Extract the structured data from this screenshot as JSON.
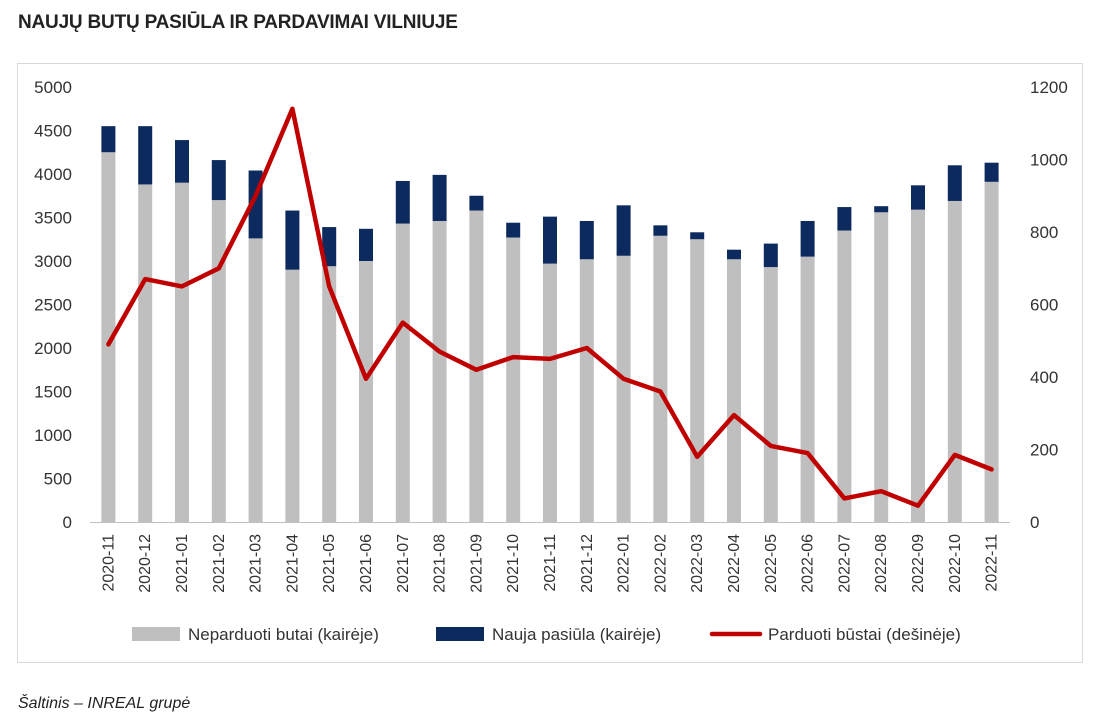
{
  "title": "NAUJŲ BUTŲ PASIŪLA IR PARDAVIMAI VILNIUJE",
  "source": "Šaltinis – INREAL grupė",
  "colors": {
    "unsold": "#bfbfbf",
    "new": "#0d2a5f",
    "sold": "#c00000"
  },
  "chart_data": {
    "type": "bar",
    "stacked": true,
    "categories": [
      "2020-11",
      "2020-12",
      "2021-01",
      "2021-02",
      "2021-03",
      "2021-04",
      "2021-05",
      "2021-06",
      "2021-07",
      "2021-08",
      "2021-09",
      "2021-10",
      "2021-11",
      "2021-12",
      "2022-01",
      "2022-02",
      "2022-03",
      "2022-04",
      "2022-05",
      "2022-06",
      "2022-07",
      "2022-08",
      "2022-09",
      "2022-10",
      "2022-11"
    ],
    "series": [
      {
        "name": "Neparduoti butai (kairėje)",
        "type": "bar",
        "axis": "left",
        "values": [
          4250,
          3880,
          3900,
          3700,
          3260,
          2900,
          2940,
          3000,
          3430,
          3460,
          3580,
          3270,
          2970,
          3020,
          3060,
          3290,
          3250,
          3020,
          2930,
          3050,
          3350,
          3560,
          3590,
          3690,
          3910
        ]
      },
      {
        "name": "Nauja pasiūla (kairėje)",
        "type": "bar",
        "axis": "left",
        "values": [
          300,
          670,
          490,
          460,
          780,
          680,
          450,
          370,
          490,
          530,
          170,
          170,
          540,
          440,
          580,
          120,
          80,
          110,
          270,
          410,
          270,
          70,
          280,
          410,
          220
        ]
      },
      {
        "name": "Parduoti būstai (dešinėje)",
        "type": "line",
        "axis": "right",
        "values": [
          490,
          670,
          650,
          700,
          900,
          1140,
          650,
          395,
          550,
          470,
          420,
          455,
          450,
          480,
          395,
          360,
          180,
          295,
          210,
          190,
          65,
          85,
          45,
          185,
          145
        ]
      }
    ],
    "y_left": {
      "min": 0,
      "max": 5000,
      "ticks": [
        "0",
        "500",
        "1000",
        "1500",
        "2000",
        "2500",
        "3000",
        "3500",
        "4000",
        "4500",
        "5000"
      ]
    },
    "y_right": {
      "min": 0,
      "max": 1200,
      "ticks": [
        "0",
        "200",
        "400",
        "600",
        "800",
        "1000",
        "1200"
      ]
    },
    "grid": false,
    "legend": "bottom"
  }
}
